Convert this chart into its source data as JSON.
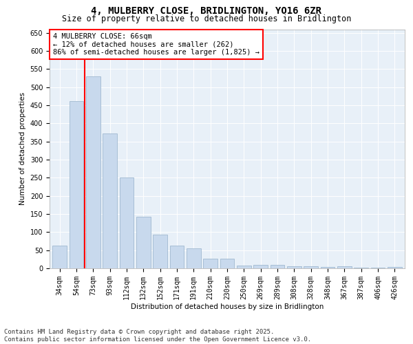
{
  "title_line1": "4, MULBERRY CLOSE, BRIDLINGTON, YO16 6ZR",
  "title_line2": "Size of property relative to detached houses in Bridlington",
  "xlabel": "Distribution of detached houses by size in Bridlington",
  "ylabel": "Number of detached properties",
  "categories": [
    "34sqm",
    "54sqm",
    "73sqm",
    "93sqm",
    "112sqm",
    "132sqm",
    "152sqm",
    "171sqm",
    "191sqm",
    "210sqm",
    "230sqm",
    "250sqm",
    "269sqm",
    "289sqm",
    "308sqm",
    "328sqm",
    "348sqm",
    "367sqm",
    "387sqm",
    "406sqm",
    "426sqm"
  ],
  "values": [
    62,
    462,
    530,
    372,
    250,
    143,
    93,
    63,
    55,
    27,
    26,
    8,
    10,
    9,
    5,
    6,
    4,
    5,
    2,
    2,
    3
  ],
  "bar_color": "#c8d9ed",
  "bar_edge_color": "#a0b8d0",
  "vline_color": "red",
  "vline_x_index": 1.5,
  "annotation_text": "4 MULBERRY CLOSE: 66sqm\n← 12% of detached houses are smaller (262)\n86% of semi-detached houses are larger (1,825) →",
  "annotation_box_color": "white",
  "annotation_box_edge_color": "red",
  "ylim": [
    0,
    660
  ],
  "yticks": [
    0,
    50,
    100,
    150,
    200,
    250,
    300,
    350,
    400,
    450,
    500,
    550,
    600,
    650
  ],
  "background_color": "#e8f0f8",
  "footer_line1": "Contains HM Land Registry data © Crown copyright and database right 2025.",
  "footer_line2": "Contains public sector information licensed under the Open Government Licence v3.0.",
  "title_fontsize": 10,
  "subtitle_fontsize": 8.5,
  "axis_label_fontsize": 7.5,
  "tick_fontsize": 7,
  "annotation_fontsize": 7.5,
  "footer_fontsize": 6.5
}
